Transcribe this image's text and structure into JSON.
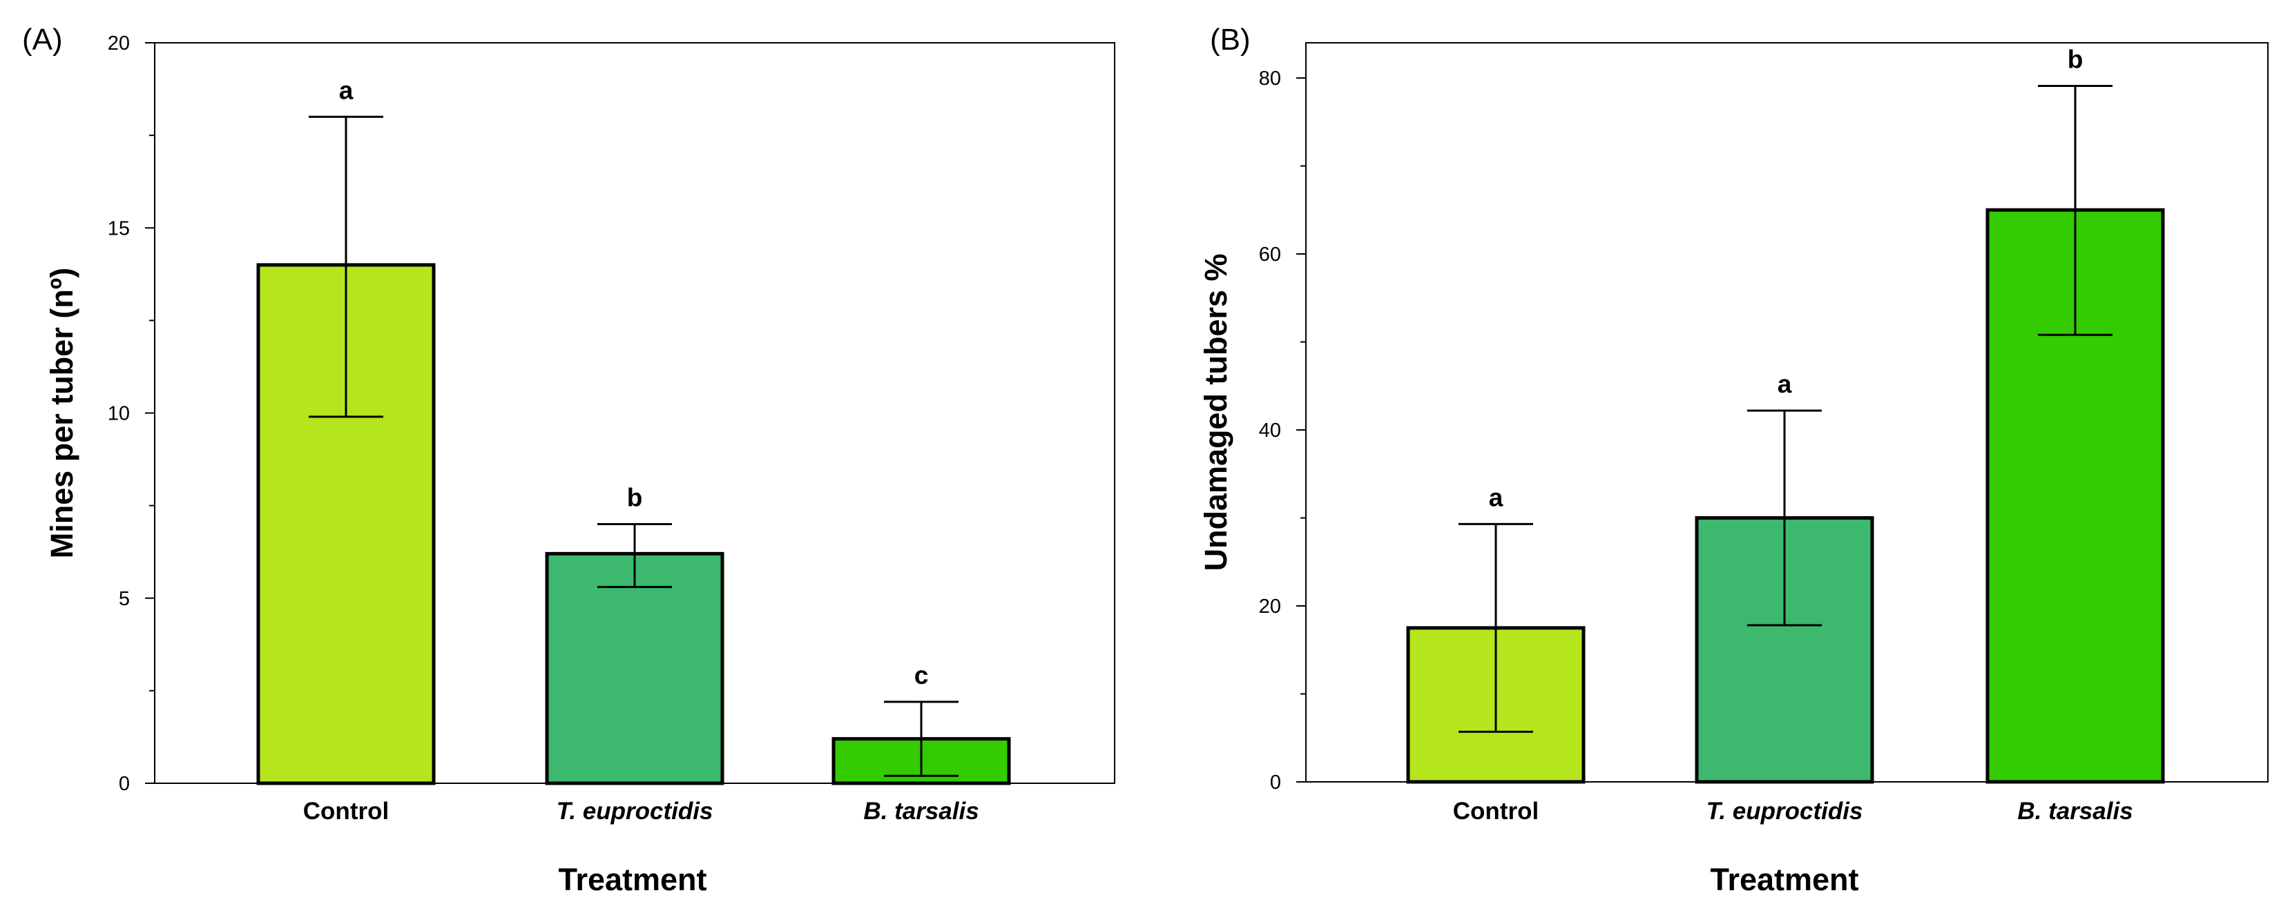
{
  "chart_data": [
    {
      "type": "bar",
      "panel_label": "(A)",
      "categories": [
        "Control",
        "T. euproctidis",
        "B. tarsalis"
      ],
      "italic_categories": [
        false,
        true,
        true
      ],
      "values": [
        14.0,
        6.2,
        1.2
      ],
      "error_low": [
        9.9,
        5.3,
        0.2
      ],
      "error_high": [
        18.0,
        7.0,
        2.2
      ],
      "significance": [
        "a",
        "b",
        "c"
      ],
      "colors": [
        "#b5e61d",
        "#3cb86f",
        "#33cc00"
      ],
      "xlabel": "Treatment",
      "ylabel": "Mines per tuber (nº)",
      "ylim": [
        0,
        20
      ],
      "major_ticks": [
        0,
        5,
        10,
        15,
        20
      ],
      "minor_ticks": [
        2.5,
        7.5,
        12.5,
        17.5
      ]
    },
    {
      "type": "bar",
      "panel_label": "(B)",
      "categories": [
        "Control",
        "T. euproctidis",
        "B. tarsalis"
      ],
      "italic_categories": [
        false,
        true,
        true
      ],
      "values": [
        17.5,
        30.0,
        65.0
      ],
      "error_low": [
        5.7,
        17.8,
        50.8
      ],
      "error_high": [
        29.3,
        42.2,
        79.1
      ],
      "significance": [
        "a",
        "a",
        "b"
      ],
      "colors": [
        "#b5e61d",
        "#3cb86f",
        "#33cc00"
      ],
      "xlabel": "Treatment",
      "ylabel": "Undamaged tubers %",
      "ylim": [
        0,
        84
      ],
      "major_ticks": [
        0,
        20,
        40,
        60,
        80
      ],
      "minor_ticks": [
        10,
        30,
        50,
        70
      ]
    }
  ]
}
